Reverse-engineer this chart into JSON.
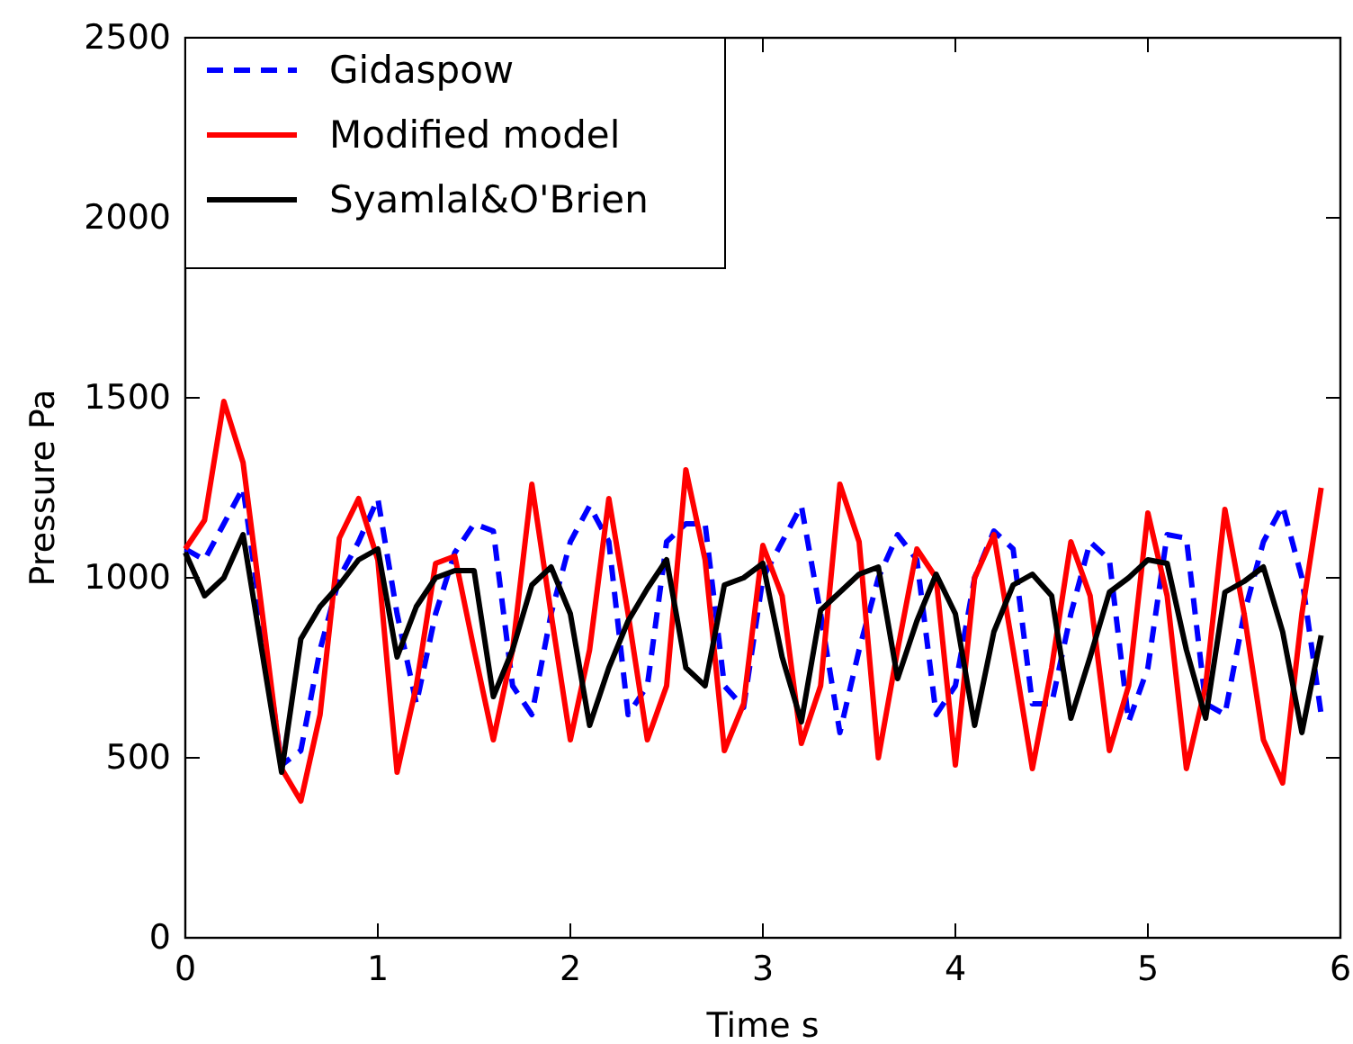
{
  "chart_data": {
    "type": "line",
    "xlabel": "Time  s",
    "ylabel": "Pressure  Pa",
    "x": [
      0,
      0.1,
      0.2,
      0.3,
      0.4,
      0.5,
      0.6,
      0.7,
      0.8,
      0.9,
      1.0,
      1.1,
      1.2,
      1.3,
      1.4,
      1.5,
      1.6,
      1.7,
      1.8,
      1.9,
      2.0,
      2.1,
      2.2,
      2.3,
      2.4,
      2.5,
      2.6,
      2.7,
      2.8,
      2.9,
      3.0,
      3.1,
      3.2,
      3.3,
      3.4,
      3.5,
      3.6,
      3.7,
      3.8,
      3.9,
      4.0,
      4.1,
      4.2,
      4.3,
      4.4,
      4.5,
      4.6,
      4.7,
      4.8,
      4.9,
      5.0,
      5.1,
      5.2,
      5.3,
      5.4,
      5.5,
      5.6,
      5.7,
      5.8,
      5.9
    ],
    "series": [
      {
        "name": "Gidaspow",
        "color": "#0000ff",
        "line_style": "dashed",
        "x": [
          0,
          0.1,
          0.2,
          0.3,
          0.5,
          0.6,
          0.7,
          0.8,
          0.9,
          1.0,
          1.1,
          1.2,
          1.3,
          1.4,
          1.5,
          1.6,
          1.7,
          1.8,
          1.9,
          2.0,
          2.1,
          2.2,
          2.3,
          2.4,
          2.5,
          2.6,
          2.7,
          2.8,
          2.9,
          3.0,
          3.1,
          3.2,
          3.3,
          3.4,
          3.5,
          3.6,
          3.7,
          3.8,
          3.9,
          4.0,
          4.1,
          4.2,
          4.3,
          4.4,
          4.5,
          4.6,
          4.7,
          4.8,
          4.9,
          5.0,
          5.1,
          5.2,
          5.3,
          5.4,
          5.5,
          5.6,
          5.7,
          5.8,
          5.9
        ],
        "values": [
          1080,
          1050,
          1150,
          1250,
          480,
          520,
          800,
          1000,
          1100,
          1220,
          900,
          650,
          900,
          1070,
          1150,
          1130,
          700,
          620,
          900,
          1100,
          1200,
          1100,
          620,
          700,
          1100,
          1150,
          1150,
          700,
          640,
          1000,
          1100,
          1200,
          900,
          570,
          800,
          1000,
          1120,
          1050,
          620,
          700,
          1000,
          1130,
          1080,
          650,
          650,
          900,
          1100,
          1050,
          600,
          750,
          1120,
          1110,
          650,
          620,
          900,
          1100,
          1200,
          1000,
          620
        ]
      },
      {
        "name": "Modified model",
        "color": "#ff0000",
        "line_style": "solid",
        "values": [
          1080,
          1160,
          1490,
          1320,
          900,
          470,
          380,
          620,
          1110,
          1220,
          1050,
          460,
          700,
          1040,
          1060,
          800,
          550,
          800,
          1260,
          900,
          550,
          800,
          1220,
          900,
          550,
          700,
          1300,
          1050,
          520,
          650,
          1090,
          950,
          540,
          700,
          1260,
          1100,
          500,
          800,
          1080,
          1000,
          480,
          1000,
          1120,
          800,
          470,
          750,
          1100,
          950,
          520,
          700,
          1180,
          950,
          470,
          700,
          1190,
          900,
          550,
          430,
          900,
          1250
        ]
      },
      {
        "name": "Syamlal&O'Brien",
        "color": "#000000",
        "line_style": "solid",
        "values": [
          1070,
          950,
          1000,
          1120,
          790,
          460,
          830,
          920,
          980,
          1050,
          1080,
          780,
          920,
          1000,
          1020,
          1020,
          670,
          800,
          980,
          1030,
          900,
          590,
          750,
          880,
          970,
          1050,
          750,
          700,
          980,
          1000,
          1040,
          780,
          600,
          910,
          960,
          1010,
          1030,
          720,
          880,
          1010,
          900,
          590,
          850,
          980,
          1010,
          950,
          610,
          780,
          960,
          1000,
          1050,
          1040,
          800,
          610,
          960,
          990,
          1030,
          850,
          570,
          840
        ]
      }
    ],
    "xlim": [
      0,
      6
    ],
    "xticks": [
      0,
      1,
      2,
      3,
      4,
      5,
      6
    ],
    "ylim": [
      0,
      2500
    ],
    "yticks": [
      0,
      500,
      1000,
      1500,
      2000,
      2500
    ],
    "grid": false,
    "legend": "top left",
    "marker": "none"
  }
}
